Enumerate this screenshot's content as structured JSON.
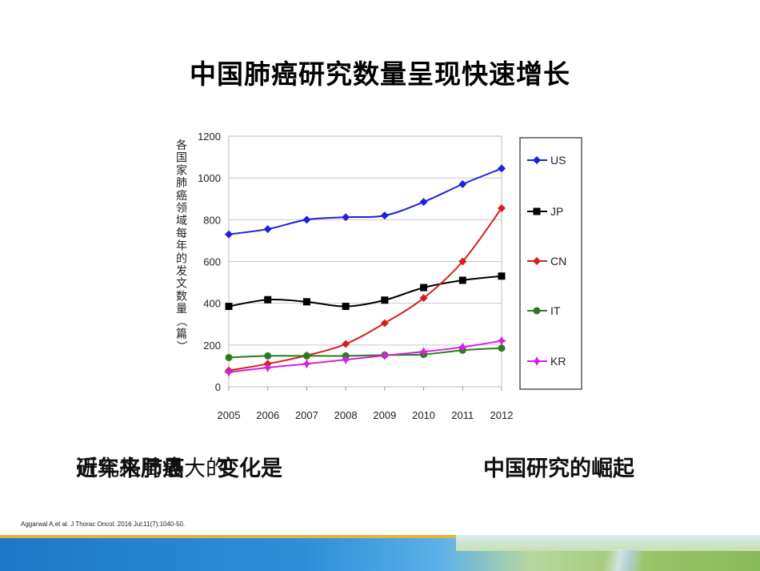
{
  "slide": {
    "title": "中国肺癌研究数量呈现快速增长",
    "caption_left_a": "研究格局最大的",
    "caption_left_b": "近年来肺癌",
    "caption_left_c": "变化是",
    "caption_right": "中国研究的崛起",
    "citation": "Aggarwal A,et al. J Thorac Oncol. 2016 Jul;11(7):1040-50."
  },
  "chart_data": {
    "type": "line",
    "title": "",
    "ylabel": "各国家肺癌领域每年的发文数量（篇）",
    "xlabel": "",
    "x": [
      "2005",
      "2006",
      "2007",
      "2008",
      "2009",
      "2010",
      "2011",
      "2012"
    ],
    "ylim": [
      0,
      1200
    ],
    "yticks": [
      "0",
      "200",
      "400",
      "600",
      "800",
      "1000",
      "1200"
    ],
    "grid": "horizontal",
    "legend_position": "right",
    "series": [
      {
        "name": "US",
        "color": "#1f1fe0",
        "marker": "diamond",
        "values": [
          730,
          755,
          800,
          812,
          820,
          885,
          970,
          1045
        ]
      },
      {
        "name": "JP",
        "color": "#000000",
        "marker": "square",
        "values": [
          385,
          417,
          407,
          385,
          415,
          475,
          510,
          530
        ]
      },
      {
        "name": "CN",
        "color": "#d42020",
        "marker": "diamond",
        "values": [
          78,
          110,
          150,
          205,
          305,
          425,
          600,
          855
        ]
      },
      {
        "name": "IT",
        "color": "#2d7a1e",
        "marker": "circle",
        "values": [
          140,
          148,
          148,
          148,
          152,
          155,
          175,
          185
        ]
      },
      {
        "name": "KR",
        "color": "#d81ee0",
        "marker": "star",
        "values": [
          70,
          92,
          110,
          130,
          150,
          168,
          190,
          220
        ]
      }
    ]
  }
}
